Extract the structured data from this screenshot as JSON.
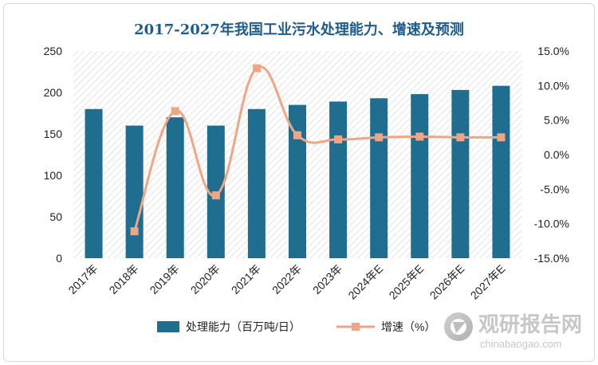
{
  "chart_data": {
    "type": "bar",
    "title": "2017-2027年我国工业污水处理能力、增速及预测",
    "categories": [
      "2017年",
      "2018年",
      "2019年",
      "2020年",
      "2021年",
      "2022年",
      "2023年",
      "2024年E",
      "2025年E",
      "2026年E",
      "2027年E"
    ],
    "series": [
      {
        "name": "处理能力（百万吨/日）",
        "type": "bar",
        "axis": "left",
        "color": "#1f6e8f",
        "values": [
          180,
          160,
          170,
          160,
          180,
          185,
          189,
          193,
          198,
          203,
          208
        ]
      },
      {
        "name": "增速（%）",
        "type": "line",
        "axis": "right",
        "color": "#f0a684",
        "values": [
          null,
          -11.1,
          6.3,
          -5.9,
          12.5,
          2.8,
          2.2,
          2.5,
          2.6,
          2.5,
          2.5
        ]
      }
    ],
    "y_left": {
      "min": 0,
      "max": 250,
      "ticks": [
        "0",
        "50",
        "100",
        "150",
        "200",
        "250"
      ]
    },
    "y_right": {
      "min": -15,
      "max": 15,
      "ticks": [
        "-15.0%",
        "-10.0%",
        "-5.0%",
        "0.0%",
        "5.0%",
        "10.0%",
        "15.0%"
      ]
    },
    "legend_position": "bottom",
    "grid": false
  },
  "watermark": {
    "cn": "观研报告网",
    "en": "chinabaogao.com"
  }
}
